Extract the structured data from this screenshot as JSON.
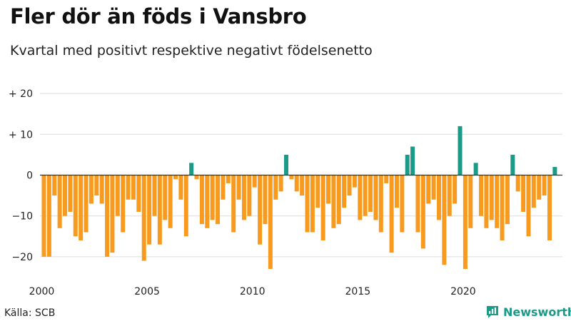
{
  "header": {
    "title": "Fler dör än föds i Vansbro",
    "subtitle": "Kvartal med positivt respektive negativt födelsenetto"
  },
  "footer": {
    "source": "Källa: SCB",
    "brand": "Newsworthy"
  },
  "colors": {
    "positive": "#1a9a87",
    "negative": "#f79a1e",
    "grid": "#dddddd",
    "zero_line": "#333333",
    "text": "#222222"
  },
  "chart_data": {
    "type": "bar",
    "title": "Fler dör än föds i Vansbro",
    "subtitle": "Kvartal med positivt respektive negativt födelsenetto",
    "xlabel": "",
    "ylabel": "",
    "ylim": [
      -25,
      20
    ],
    "start_year": 2000,
    "periods_per_year": 4,
    "grid": true,
    "yticks": [
      {
        "value": 20,
        "label": "+ 20"
      },
      {
        "value": 10,
        "label": "+ 10"
      },
      {
        "value": 0,
        "label": "0"
      },
      {
        "value": -10,
        "label": "−10"
      },
      {
        "value": -20,
        "label": "−20"
      }
    ],
    "xticks": [
      {
        "year": 2000,
        "label": "2000"
      },
      {
        "year": 2005,
        "label": "2005"
      },
      {
        "year": 2010,
        "label": "2010"
      },
      {
        "year": 2015,
        "label": "2015"
      },
      {
        "year": 2020,
        "label": "2020"
      }
    ],
    "values": [
      -20,
      -20,
      -5,
      -13,
      -10,
      -9,
      -15,
      -16,
      -14,
      -7,
      -5,
      -7,
      -20,
      -19,
      -10,
      -14,
      -6,
      -6,
      -9,
      -21,
      -17,
      -10,
      -17,
      -11,
      -13,
      -1,
      -6,
      -15,
      3,
      -1,
      -12,
      -13,
      -11,
      -12,
      -6,
      -2,
      -14,
      -6,
      -11,
      -10,
      -3,
      -17,
      -12,
      -23,
      -6,
      -4,
      5,
      -1,
      -4,
      -5,
      -14,
      -14,
      -8,
      -16,
      -7,
      -13,
      -12,
      -8,
      -5,
      -3,
      -11,
      -10,
      -9,
      -11,
      -14,
      -2,
      -19,
      -8,
      -14,
      5,
      7,
      -14,
      -18,
      -7,
      -6,
      -11,
      -22,
      -10,
      -7,
      12,
      -23,
      -13,
      3,
      -10,
      -13,
      -11,
      -13,
      -16,
      -12,
      5,
      -4,
      -9,
      -15,
      -8,
      -6,
      -5,
      -16,
      2
    ]
  }
}
